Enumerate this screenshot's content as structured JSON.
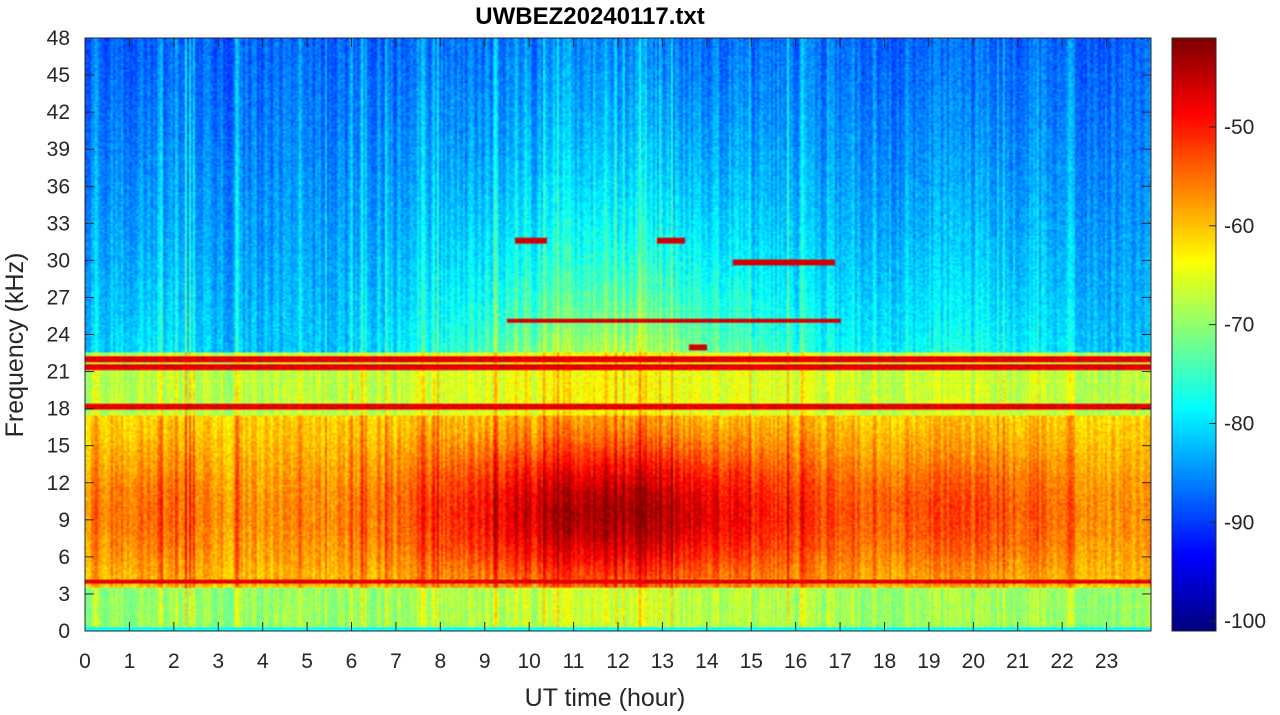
{
  "chart_data": {
    "type": "heatmap",
    "title": "UWBEZ20240117.txt",
    "xlabel": "UT time (hour)",
    "ylabel": "Frequency (kHz)",
    "xlim": [
      0,
      24
    ],
    "ylim": [
      0,
      48
    ],
    "x_ticks": [
      "0",
      "1",
      "2",
      "3",
      "4",
      "5",
      "6",
      "7",
      "8",
      "9",
      "10",
      "11",
      "12",
      "13",
      "14",
      "15",
      "16",
      "17",
      "18",
      "19",
      "20",
      "21",
      "22",
      "23"
    ],
    "y_ticks": [
      "0",
      "3",
      "6",
      "9",
      "12",
      "15",
      "18",
      "21",
      "24",
      "27",
      "30",
      "33",
      "36",
      "39",
      "42",
      "45",
      "48"
    ],
    "colorbar": {
      "colormap": "jet",
      "clim": [
        -101,
        -41
      ],
      "ticks": [
        "-50",
        "-60",
        "-70",
        "-80",
        "-90",
        "-100"
      ]
    },
    "features": {
      "persistent_lines_khz": [
        4.0,
        18.2,
        21.4,
        22.0
      ],
      "intermittent_lines": [
        {
          "freq_khz": 29.8,
          "t_start": 14.6,
          "t_end": 16.9
        },
        {
          "freq_khz": 31.6,
          "t_start": 9.7,
          "t_end": 10.4
        },
        {
          "freq_khz": 31.6,
          "t_start": 12.9,
          "t_end": 13.5
        },
        {
          "freq_khz": 25.1,
          "t_start": 9.5,
          "t_end": 17.0
        },
        {
          "freq_khz": 23.0,
          "t_start": 13.6,
          "t_end": 14.0
        }
      ],
      "hot_band_khz": [
        3.5,
        17.5
      ],
      "hot_peak_hour": 12
    }
  }
}
